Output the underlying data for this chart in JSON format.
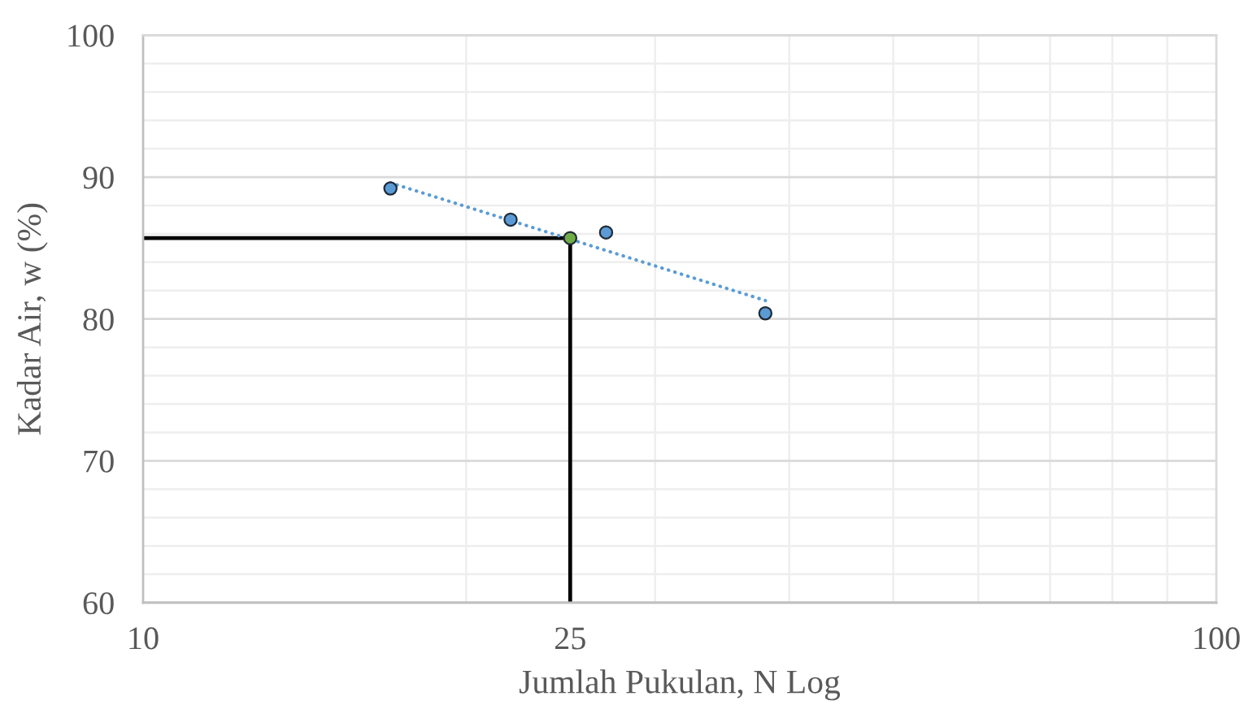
{
  "chart_data": {
    "type": "scatter",
    "xlabel": "Jumlah Pukulan, N Log",
    "ylabel": "Kadar Air, w (%)",
    "log": "x",
    "xlim": [
      10,
      100
    ],
    "xticks": [
      10,
      25,
      100
    ],
    "ylim": [
      60,
      100
    ],
    "yticks": [
      60,
      70,
      80,
      90,
      100
    ],
    "grid": true,
    "series": [
      {
        "type": "line",
        "color": "#000000",
        "x": [
          10,
          25,
          25
        ],
        "values": [
          85.7,
          85.7,
          60
        ],
        "marker": "none",
        "line_style": "solid"
      },
      {
        "type": "line",
        "color": "#5b9bd5",
        "x": [
          17,
          38
        ],
        "values": [
          89.6,
          81.3
        ],
        "marker": "none",
        "line_style": "dotted"
      },
      {
        "color": "#5b9bd5",
        "x": [
          17,
          22,
          27,
          38
        ],
        "values": [
          89.2,
          87.0,
          86.1,
          80.4
        ],
        "marker": "circle"
      },
      {
        "color": "#70ad47",
        "x": [
          25
        ],
        "values": [
          85.7
        ],
        "marker": "circle"
      }
    ]
  }
}
